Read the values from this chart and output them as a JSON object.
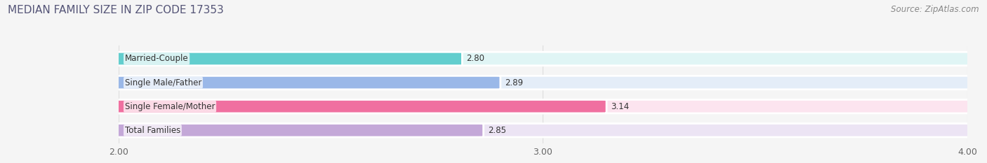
{
  "title": "MEDIAN FAMILY SIZE IN ZIP CODE 17353",
  "source": "Source: ZipAtlas.com",
  "categories": [
    "Married-Couple",
    "Single Male/Father",
    "Single Female/Mother",
    "Total Families"
  ],
  "values": [
    2.8,
    2.89,
    3.14,
    2.85
  ],
  "bar_colors": [
    "#62cece",
    "#9ab8e8",
    "#f070a0",
    "#c4a8d8"
  ],
  "bar_background_colors": [
    "#e0f5f5",
    "#e4edf8",
    "#fce4ef",
    "#ece4f4"
  ],
  "xlim": [
    2.0,
    4.0
  ],
  "xticks": [
    2.0,
    3.0,
    4.0
  ],
  "xtick_labels": [
    "2.00",
    "3.00",
    "4.00"
  ],
  "title_fontsize": 11,
  "source_fontsize": 8.5,
  "label_fontsize": 8.5,
  "value_fontsize": 8.5,
  "background_color": "#f5f5f5",
  "title_color": "#555577",
  "source_color": "#888888",
  "bar_height": 0.55,
  "bar_label_color": "#333333",
  "value_label_color": "#333333",
  "grid_color": "#dddddd",
  "bar_edge_color": "#ffffff"
}
